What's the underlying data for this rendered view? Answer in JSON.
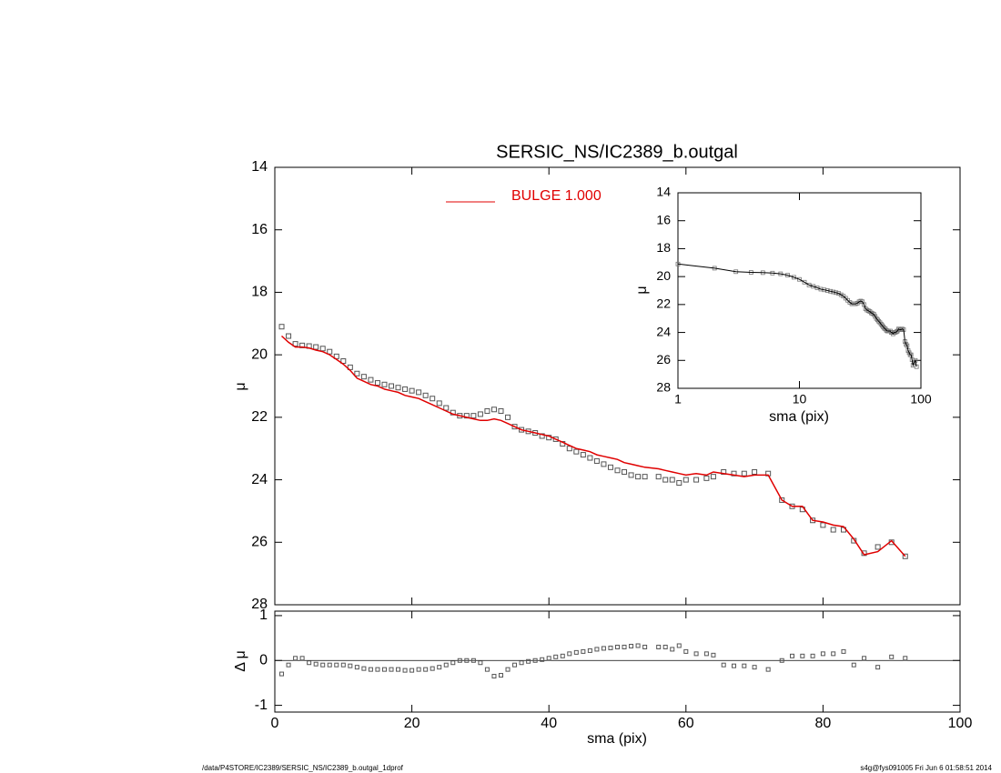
{
  "chart_data": [
    {
      "type": "scatter",
      "title": "SERSIC_NS/IC2389_b.outgal",
      "ylabel": "μ",
      "xlim": [
        0,
        100
      ],
      "ylim": [
        28,
        14
      ],
      "yticks": [
        14,
        16,
        18,
        20,
        22,
        24,
        26,
        28
      ],
      "legend": "upper center",
      "x": [
        1,
        2,
        3,
        4,
        5,
        6,
        7,
        8,
        9,
        10,
        11,
        12,
        13,
        14,
        15,
        16,
        17,
        18,
        19,
        20,
        21,
        22,
        23,
        24,
        25,
        26,
        27,
        28,
        29,
        30,
        31,
        32,
        33,
        34,
        35,
        36,
        37,
        38,
        39,
        40,
        41,
        42,
        43,
        44,
        45,
        46,
        47,
        48,
        49,
        50,
        51,
        52,
        53,
        54,
        56,
        57,
        58,
        59,
        60,
        61.5,
        63,
        64,
        65.5,
        67,
        68.5,
        70,
        72,
        74,
        75.5,
        77,
        78.5,
        80,
        81.5,
        83,
        84.5,
        86,
        88,
        90,
        92
      ],
      "series": [
        {
          "color": "#555555",
          "marker": "square",
          "values": [
            19.1,
            19.4,
            19.65,
            19.7,
            19.72,
            19.75,
            19.8,
            19.9,
            20.05,
            20.2,
            20.4,
            20.6,
            20.7,
            20.8,
            20.9,
            20.95,
            21.0,
            21.05,
            21.1,
            21.15,
            21.2,
            21.3,
            21.4,
            21.55,
            21.7,
            21.85,
            21.95,
            21.95,
            21.95,
            21.9,
            21.8,
            21.75,
            21.8,
            22.0,
            22.3,
            22.4,
            22.45,
            22.5,
            22.6,
            22.65,
            22.7,
            22.85,
            23.0,
            23.1,
            23.2,
            23.3,
            23.4,
            23.5,
            23.6,
            23.7,
            23.75,
            23.85,
            23.9,
            23.9,
            23.9,
            24.0,
            24.0,
            24.1,
            24.0,
            24.0,
            23.95,
            23.9,
            23.75,
            23.8,
            23.8,
            23.75,
            23.8,
            24.65,
            24.85,
            24.95,
            25.3,
            25.45,
            25.6,
            25.6,
            25.95,
            26.35,
            26.15,
            26.0,
            26.45
          ]
        },
        {
          "name": "BULGE  1.000",
          "color": "#e00000",
          "marker": "line",
          "values": [
            19.4,
            19.6,
            19.75,
            19.75,
            19.78,
            19.85,
            19.9,
            20.0,
            20.15,
            20.3,
            20.5,
            20.75,
            20.85,
            20.95,
            21.0,
            21.1,
            21.15,
            21.2,
            21.3,
            21.35,
            21.4,
            21.5,
            21.6,
            21.7,
            21.8,
            21.9,
            21.95,
            22.0,
            22.05,
            22.1,
            22.1,
            22.05,
            22.1,
            22.2,
            22.3,
            22.4,
            22.45,
            22.5,
            22.55,
            22.6,
            22.7,
            22.8,
            22.9,
            23.0,
            23.05,
            23.1,
            23.2,
            23.25,
            23.3,
            23.35,
            23.45,
            23.5,
            23.55,
            23.6,
            23.65,
            23.7,
            23.75,
            23.8,
            23.85,
            23.8,
            23.85,
            23.75,
            23.8,
            23.85,
            23.9,
            23.85,
            23.85,
            24.65,
            24.85,
            24.85,
            25.3,
            25.35,
            25.45,
            25.5,
            25.9,
            26.4,
            26.3,
            25.95,
            26.45
          ]
        }
      ]
    },
    {
      "type": "scatter",
      "xlabel": "sma (pix)",
      "ylabel": "Δ μ",
      "color": "#555555",
      "xlim": [
        0,
        100
      ],
      "xticks": [
        0,
        20,
        40,
        60,
        80,
        100
      ],
      "ylim": [
        -1.15,
        1.1
      ],
      "yticks": [
        -1,
        0,
        1
      ],
      "x": [
        1,
        2,
        3,
        4,
        5,
        6,
        7,
        8,
        9,
        10,
        11,
        12,
        13,
        14,
        15,
        16,
        17,
        18,
        19,
        20,
        21,
        22,
        23,
        24,
        25,
        26,
        27,
        28,
        29,
        30,
        31,
        32,
        33,
        34,
        35,
        36,
        37,
        38,
        39,
        40,
        41,
        42,
        43,
        44,
        45,
        46,
        47,
        48,
        49,
        50,
        51,
        52,
        53,
        54,
        56,
        57,
        58,
        59,
        60,
        61.5,
        63,
        64,
        65.5,
        67,
        68.5,
        70,
        72,
        74,
        75.5,
        77,
        78.5,
        80,
        81.5,
        83,
        84.5,
        86,
        88,
        90,
        92
      ],
      "values": [
        -0.3,
        -0.1,
        0.05,
        0.05,
        -0.05,
        -0.08,
        -0.1,
        -0.1,
        -0.1,
        -0.1,
        -0.12,
        -0.15,
        -0.18,
        -0.2,
        -0.2,
        -0.2,
        -0.2,
        -0.2,
        -0.22,
        -0.22,
        -0.2,
        -0.2,
        -0.18,
        -0.15,
        -0.1,
        -0.05,
        0,
        0,
        0,
        -0.05,
        -0.2,
        -0.35,
        -0.33,
        -0.2,
        -0.1,
        -0.05,
        -0.02,
        0,
        0.02,
        0.05,
        0.08,
        0.1,
        0.15,
        0.18,
        0.2,
        0.22,
        0.25,
        0.27,
        0.28,
        0.3,
        0.3,
        0.32,
        0.33,
        0.3,
        0.3,
        0.3,
        0.25,
        0.33,
        0.2,
        0.15,
        0.15,
        0.12,
        -0.1,
        -0.12,
        -0.12,
        -0.15,
        -0.2,
        0,
        0.1,
        0.1,
        0.1,
        0.15,
        0.15,
        0.2,
        -0.1,
        0.05,
        -0.15,
        0.08,
        0.05
      ]
    },
    {
      "type": "line",
      "xlabel": "sma (pix)",
      "ylabel": "μ",
      "color": "#000000",
      "log_x": true,
      "xlim": [
        1,
        100
      ],
      "xticks": [
        1,
        10,
        100
      ],
      "ylim": [
        28,
        14
      ],
      "yticks": [
        14,
        16,
        18,
        20,
        22,
        24,
        26,
        28
      ]
    }
  ],
  "footer": {
    "left": "/data/P4STORE/IC2389/SERSIC_NS/IC2389_b.outgal_1dprof",
    "right": "s4g@fys091005  Fri Jun  6 01:58:51 2014"
  }
}
